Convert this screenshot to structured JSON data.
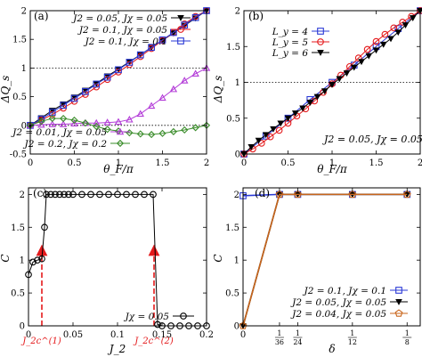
{
  "figure": {
    "panels": [
      "(a)",
      "(b)",
      "(c)",
      "(d)"
    ]
  },
  "chart_data": [
    {
      "panel": "(a)",
      "type": "line",
      "xlabel": "θ_F/π",
      "ylabel": "ΔQ_s",
      "xlim": [
        0,
        2
      ],
      "ylim": [
        -0.5,
        2
      ],
      "xticks": [
        "0",
        "0.5",
        "1",
        "1.5",
        "2"
      ],
      "yticks": [
        "-0.5",
        "0",
        "0.5",
        "1",
        "1.5",
        "2"
      ],
      "hlines": [
        0,
        1
      ],
      "legend_position": "top-left, bottom-left",
      "series": [
        {
          "name": "J2 = 0.05, Jχ = 0.05",
          "color": "#000000",
          "marker": "triangle-down",
          "x": [
            0,
            0.125,
            0.25,
            0.375,
            0.5,
            0.625,
            0.75,
            0.875,
            1,
            1.125,
            1.25,
            1.375,
            1.5,
            1.625,
            1.75,
            1.875,
            2
          ],
          "y": [
            0,
            0.13,
            0.26,
            0.37,
            0.49,
            0.61,
            0.73,
            0.86,
            0.98,
            1.11,
            1.23,
            1.36,
            1.48,
            1.61,
            1.74,
            1.87,
            2.0
          ]
        },
        {
          "name": "J2 = 0.1, Jχ = 0.05",
          "color": "#e41a1c",
          "marker": "circle",
          "x": [
            0,
            0.125,
            0.25,
            0.375,
            0.5,
            0.625,
            0.75,
            0.875,
            1,
            1.125,
            1.25,
            1.375,
            1.5,
            1.625,
            1.75,
            1.875,
            2
          ],
          "y": [
            0,
            0.09,
            0.19,
            0.3,
            0.42,
            0.54,
            0.67,
            0.8,
            0.93,
            1.06,
            1.2,
            1.34,
            1.48,
            1.62,
            1.77,
            1.9,
            2.0
          ]
        },
        {
          "name": "J2 = 0.1, Jχ = 0.1",
          "color": "#2a39d6",
          "marker": "square",
          "x": [
            0,
            0.125,
            0.25,
            0.375,
            0.5,
            0.625,
            0.75,
            0.875,
            1,
            1.125,
            1.25,
            1.375,
            1.5,
            1.625,
            1.75,
            1.875,
            2
          ],
          "y": [
            0,
            0.11,
            0.23,
            0.35,
            0.47,
            0.59,
            0.72,
            0.84,
            0.97,
            1.1,
            1.23,
            1.36,
            1.49,
            1.62,
            1.75,
            1.88,
            2.0
          ]
        },
        {
          "name": "J2 = 0.01, Jχ = 0.05",
          "color": "#b33cd8",
          "marker": "triangle-up",
          "x": [
            0,
            0.125,
            0.25,
            0.375,
            0.5,
            0.625,
            0.75,
            0.875,
            1,
            1.125,
            1.25,
            1.375,
            1.5,
            1.625,
            1.75,
            1.875,
            2
          ],
          "y": [
            0,
            0.01,
            0.02,
            0.02,
            0.03,
            0.04,
            0.04,
            0.05,
            0.06,
            0.1,
            0.2,
            0.34,
            0.48,
            0.63,
            0.78,
            0.9,
            1.0
          ]
        },
        {
          "name": "J2 = 0.2, Jχ = 0.2",
          "color": "#3a8c2a",
          "marker": "diamond",
          "x": [
            0,
            0.125,
            0.25,
            0.375,
            0.5,
            0.625,
            0.75,
            0.875,
            1,
            1.125,
            1.25,
            1.375,
            1.5,
            1.625,
            1.75,
            1.875,
            2
          ],
          "y": [
            0,
            0.07,
            0.12,
            0.12,
            0.09,
            0.04,
            -0.02,
            -0.07,
            -0.1,
            -0.13,
            -0.15,
            -0.16,
            -0.14,
            -0.11,
            -0.08,
            -0.04,
            0
          ]
        }
      ]
    },
    {
      "panel": "(b)",
      "type": "line",
      "xlabel": "θ_F/π",
      "ylabel": "ΔQ_s",
      "xlim": [
        0,
        2
      ],
      "ylim": [
        0,
        2
      ],
      "xticks": [
        "0",
        "0.5",
        "1",
        "1.5",
        "2"
      ],
      "yticks": [
        "0",
        "0.5",
        "1",
        "1.5",
        "2"
      ],
      "hlines": [
        1
      ],
      "annotation": "J2 = 0.05, Jχ = 0.05",
      "legend_position": "top-left",
      "series": [
        {
          "name": "L_y = 4",
          "color": "#2a39d6",
          "marker": "square",
          "x": [
            0,
            0.25,
            0.5,
            0.75,
            1,
            1.25,
            1.5,
            1.75,
            2
          ],
          "y": [
            0,
            0.25,
            0.5,
            0.76,
            1.0,
            1.24,
            1.5,
            1.75,
            2.0
          ]
        },
        {
          "name": "L_y = 5",
          "color": "#e41a1c",
          "marker": "circle",
          "x": [
            0,
            0.1,
            0.2,
            0.3,
            0.4,
            0.5,
            0.6,
            0.7,
            0.8,
            0.9,
            1,
            1.1,
            1.2,
            1.3,
            1.4,
            1.5,
            1.6,
            1.7,
            1.8,
            1.9,
            2
          ],
          "y": [
            0,
            0.07,
            0.15,
            0.24,
            0.33,
            0.43,
            0.53,
            0.63,
            0.74,
            0.86,
            0.98,
            1.1,
            1.22,
            1.34,
            1.46,
            1.57,
            1.67,
            1.76,
            1.84,
            1.92,
            2.0
          ]
        },
        {
          "name": "L_y = 6",
          "color": "#000000",
          "marker": "triangle-down",
          "x": [
            0,
            0.0833,
            0.1667,
            0.25,
            0.3333,
            0.4167,
            0.5,
            0.5833,
            0.6667,
            0.75,
            0.8333,
            0.9167,
            1,
            1.0833,
            1.1667,
            1.25,
            1.3333,
            1.4167,
            1.5,
            1.5833,
            1.6667,
            1.75,
            1.8333,
            1.9167,
            2
          ],
          "y": [
            0,
            0.1,
            0.19,
            0.27,
            0.35,
            0.43,
            0.5,
            0.57,
            0.64,
            0.72,
            0.8,
            0.88,
            0.97,
            1.05,
            1.13,
            1.21,
            1.29,
            1.37,
            1.45,
            1.53,
            1.61,
            1.7,
            1.8,
            1.9,
            2.0
          ]
        }
      ]
    },
    {
      "panel": "(c)",
      "type": "line",
      "xlabel": "J_2",
      "ylabel": "C",
      "xlim": [
        0,
        0.2
      ],
      "ylim": [
        0,
        2.1
      ],
      "xticks": [
        "0",
        "0.05",
        "0.1",
        "0.15",
        "0.2"
      ],
      "yticks": [
        "0",
        "0.5",
        "1",
        "1.5",
        "2"
      ],
      "legend_position": "bottom-right",
      "critical_labels": [
        "J_2c^(1)",
        "J_2c^(2)"
      ],
      "critical_values": [
        0.015,
        0.141
      ],
      "series": [
        {
          "name": "Jχ = 0.05",
          "color": "#000000",
          "marker": "circle",
          "x": [
            0.0,
            0.005,
            0.01,
            0.015,
            0.018,
            0.02,
            0.025,
            0.03,
            0.035,
            0.04,
            0.045,
            0.05,
            0.06,
            0.07,
            0.08,
            0.09,
            0.1,
            0.11,
            0.12,
            0.13,
            0.14,
            0.145,
            0.15,
            0.16,
            0.17,
            0.18,
            0.19,
            0.2
          ],
          "y": [
            0.78,
            0.97,
            1.0,
            1.02,
            1.5,
            2.0,
            2.0,
            2.0,
            2.0,
            2.0,
            2.0,
            2.0,
            2.0,
            2.0,
            2.0,
            2.0,
            2.0,
            2.0,
            2.0,
            2.0,
            2.0,
            0.02,
            0.0,
            0.0,
            0.0,
            0.0,
            0.0,
            0.0
          ]
        }
      ]
    },
    {
      "panel": "(d)",
      "type": "line",
      "xlabel": "δ",
      "ylabel": "C",
      "xlim": [
        0,
        0.135
      ],
      "ylim": [
        0,
        2.1
      ],
      "xticks": [
        "0",
        "1/36",
        "1/24",
        "1/12",
        "1/8"
      ],
      "yticks": [
        "0",
        "0.5",
        "1",
        "1.5",
        "2"
      ],
      "legend_position": "bottom-right",
      "series": [
        {
          "name": "J2 = 0.1, Jχ = 0.1",
          "color": "#2a39d6",
          "marker": "square",
          "x": [
            0,
            0.02778,
            0.04167,
            0.08333,
            0.125
          ],
          "y": [
            1.98,
            2.0,
            2.0,
            2.0,
            2.0
          ]
        },
        {
          "name": "J2 = 0.05, Jχ = 0.05",
          "color": "#000000",
          "marker": "triangle-down",
          "x": [
            0,
            0.02778,
            0.04167,
            0.08333,
            0.125
          ],
          "y": [
            0.0,
            2.0,
            2.0,
            2.0,
            2.0
          ]
        },
        {
          "name": "J2 = 0.04, Jχ = 0.05",
          "color": "#c8651b",
          "marker": "pentagon",
          "x": [
            0,
            0.02778,
            0.04167,
            0.08333,
            0.125
          ],
          "y": [
            0.0,
            2.0,
            2.0,
            2.0,
            2.0
          ]
        }
      ]
    }
  ]
}
